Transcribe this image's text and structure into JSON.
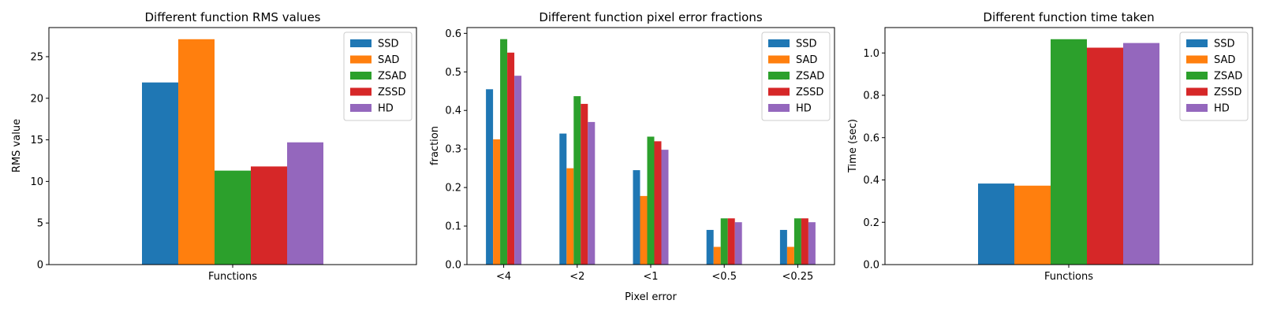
{
  "colors": {
    "series": [
      "#1f77b4",
      "#ff7f0e",
      "#2ca02c",
      "#d62728",
      "#9467bd"
    ]
  },
  "chart_data": [
    {
      "type": "bar",
      "title": "Different function RMS values",
      "xlabel": "",
      "ylabel": "RMS value",
      "categories": [
        "Functions"
      ],
      "series": [
        {
          "name": "SSD",
          "values": [
            21.9
          ]
        },
        {
          "name": "SAD",
          "values": [
            27.1
          ]
        },
        {
          "name": "ZSAD",
          "values": [
            11.3
          ]
        },
        {
          "name": "ZSSD",
          "values": [
            11.8
          ]
        },
        {
          "name": "HD",
          "values": [
            14.7
          ]
        }
      ],
      "ylim": [
        0,
        28.5
      ],
      "yticks": [
        0,
        5,
        10,
        15,
        20,
        25
      ],
      "legend": "top-right",
      "grid": false
    },
    {
      "type": "bar",
      "title": "Different function pixel error fractions",
      "xlabel": "Pixel error",
      "ylabel": "fraction",
      "categories": [
        "<4",
        "<2",
        "<1",
        "<0.5",
        "<0.25"
      ],
      "series": [
        {
          "name": "SSD",
          "values": [
            0.455,
            0.34,
            0.245,
            0.09,
            0.09
          ]
        },
        {
          "name": "SAD",
          "values": [
            0.325,
            0.25,
            0.178,
            0.046,
            0.046
          ]
        },
        {
          "name": "ZSAD",
          "values": [
            0.585,
            0.437,
            0.332,
            0.12,
            0.12
          ]
        },
        {
          "name": "ZSSD",
          "values": [
            0.55,
            0.417,
            0.32,
            0.12,
            0.12
          ]
        },
        {
          "name": "HD",
          "values": [
            0.49,
            0.37,
            0.298,
            0.11,
            0.11
          ]
        }
      ],
      "ylim": [
        0,
        0.615
      ],
      "yticks": [
        0.0,
        0.1,
        0.2,
        0.3,
        0.4,
        0.5,
        0.6
      ],
      "legend": "top-right",
      "grid": false
    },
    {
      "type": "bar",
      "title": "Different function time taken",
      "xlabel": "",
      "ylabel": "Time (sec)",
      "categories": [
        "Functions"
      ],
      "series": [
        {
          "name": "SSD",
          "values": [
            0.383
          ]
        },
        {
          "name": "SAD",
          "values": [
            0.373
          ]
        },
        {
          "name": "ZSAD",
          "values": [
            1.065
          ]
        },
        {
          "name": "ZSSD",
          "values": [
            1.025
          ]
        },
        {
          "name": "HD",
          "values": [
            1.047
          ]
        }
      ],
      "ylim": [
        0,
        1.12
      ],
      "yticks": [
        0.0,
        0.2,
        0.4,
        0.6,
        0.8,
        1.0
      ],
      "legend": "top-right",
      "grid": false
    }
  ]
}
